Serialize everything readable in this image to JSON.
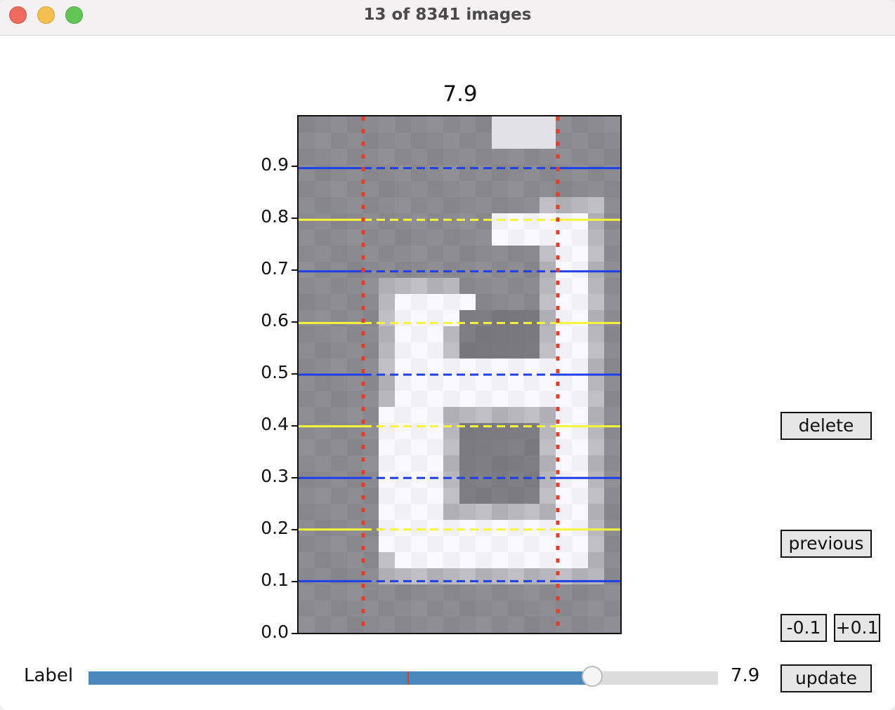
{
  "window": {
    "title": "13 of 8341 images"
  },
  "plot": {
    "title": "7.9",
    "yticks": [
      "0.0",
      "0.1",
      "0.2",
      "0.3",
      "0.4",
      "0.5",
      "0.6",
      "0.7",
      "0.8",
      "0.9"
    ],
    "colors": {
      "blue_line": "#1f3fe8",
      "yellow_line": "#f5f53a",
      "red_line": "#e0402a"
    }
  },
  "buttons": {
    "delete": "delete",
    "previous": "previous",
    "minus": "-0.1",
    "plus": "+0.1",
    "update": "update"
  },
  "slider": {
    "label": "Label",
    "value_text": "7.9",
    "fill_fraction": 0.8,
    "initial_marker_fraction": 0.507,
    "colors": {
      "fill": "#4a87ba",
      "track": "#dcdcdc",
      "marker": "#d2432c"
    }
  }
}
